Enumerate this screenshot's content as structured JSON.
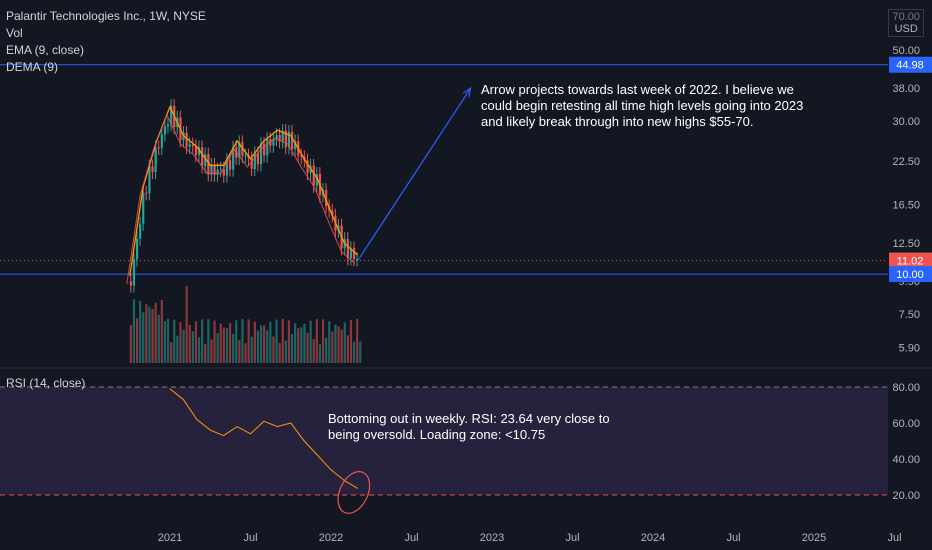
{
  "header": {
    "symbol_line": "Palantir Technologies Inc., 1W, NYSE",
    "vol_label": "Vol",
    "ema_label": "EMA (9, close)",
    "dema_label": "DEMA (9)"
  },
  "rsi_panel": {
    "label": "RSI (14, close)"
  },
  "currency": {
    "top": "70.00",
    "unit": "USD"
  },
  "annotations": {
    "arrow_note": "Arrow projects towards last week of 2022. I believe we could begin retesting all time high levels going into 2023 and likely break through into new highs $55-70.",
    "rsi_note": "Bottoming out in weekly. RSI: 23.64 very close to being oversold. Loading zone: <10.75"
  },
  "colors": {
    "background": "#131722",
    "up": "#26a69a",
    "down": "#ef5350",
    "horizontal_line": "#2962ff",
    "ema": "#ff9800",
    "rsi_line": "#ff9800",
    "rsi_band": "#7e57c2",
    "text": "#d1d4dc"
  },
  "chart_data": [
    {
      "type": "candlestick",
      "title": "Palantir Technologies Inc., 1W, NYSE",
      "scale": "log",
      "y_ticks": [
        "70.00",
        "50.00",
        "38.00",
        "30.00",
        "22.50",
        "16.50",
        "12.50",
        "9.50",
        "7.50",
        "5.90"
      ],
      "x_ticks": [
        "2021",
        "Jul",
        "2022",
        "Jul",
        "2023",
        "Jul",
        "2024",
        "Jul",
        "2025",
        "Jul"
      ],
      "price_labels": [
        {
          "text": "44.98",
          "value": 44.98,
          "kind": "horizontal-line",
          "color": "#2962ff"
        },
        {
          "text": "11.02",
          "value": 11.02,
          "kind": "last-price",
          "color": "#ef5350"
        },
        {
          "text": "10.00",
          "value": 10.0,
          "kind": "horizontal-line",
          "color": "#2962ff"
        }
      ],
      "horizontal_lines": [
        44.98,
        10.0
      ],
      "last_price": 11.02,
      "arrow": {
        "from": [
          "2022-03",
          11.02
        ],
        "to": [
          "2022-12",
          38.0
        ]
      },
      "approx_closes": [
        {
          "date": "2020-10",
          "value": 9.5
        },
        {
          "date": "2020-11",
          "value": 18
        },
        {
          "date": "2020-12",
          "value": 25
        },
        {
          "date": "2021-01",
          "value": 32
        },
        {
          "date": "2021-02",
          "value": 26
        },
        {
          "date": "2021-03",
          "value": 24
        },
        {
          "date": "2021-04",
          "value": 21
        },
        {
          "date": "2021-05",
          "value": 21
        },
        {
          "date": "2021-06",
          "value": 25
        },
        {
          "date": "2021-07",
          "value": 22
        },
        {
          "date": "2021-08",
          "value": 25
        },
        {
          "date": "2021-09",
          "value": 27
        },
        {
          "date": "2021-10",
          "value": 26
        },
        {
          "date": "2021-11",
          "value": 22
        },
        {
          "date": "2021-12",
          "value": 19
        },
        {
          "date": "2022-01",
          "value": 15
        },
        {
          "date": "2022-02",
          "value": 12
        },
        {
          "date": "2022-03",
          "value": 11.02
        }
      ],
      "series": [
        {
          "name": "EMA (9, close)"
        },
        {
          "name": "DEMA (9)"
        },
        {
          "name": "Vol"
        }
      ]
    },
    {
      "type": "line",
      "title": "RSI (14, close)",
      "y_ticks": [
        "80.00",
        "60.00",
        "40.00",
        "20.00"
      ],
      "ylim": [
        10,
        90
      ],
      "band": [
        20,
        80
      ],
      "series": [
        {
          "name": "RSI (14, close)",
          "points": [
            {
              "date": "2021-01",
              "value": 79
            },
            {
              "date": "2021-02",
              "value": 73
            },
            {
              "date": "2021-03",
              "value": 62
            },
            {
              "date": "2021-04",
              "value": 56
            },
            {
              "date": "2021-05",
              "value": 53
            },
            {
              "date": "2021-06",
              "value": 58
            },
            {
              "date": "2021-07",
              "value": 54
            },
            {
              "date": "2021-08",
              "value": 61
            },
            {
              "date": "2021-09",
              "value": 58
            },
            {
              "date": "2021-10",
              "value": 60
            },
            {
              "date": "2021-11",
              "value": 50
            },
            {
              "date": "2021-12",
              "value": 42
            },
            {
              "date": "2022-01",
              "value": 34
            },
            {
              "date": "2022-02",
              "value": 28
            },
            {
              "date": "2022-03",
              "value": 23.64
            }
          ]
        }
      ]
    }
  ]
}
